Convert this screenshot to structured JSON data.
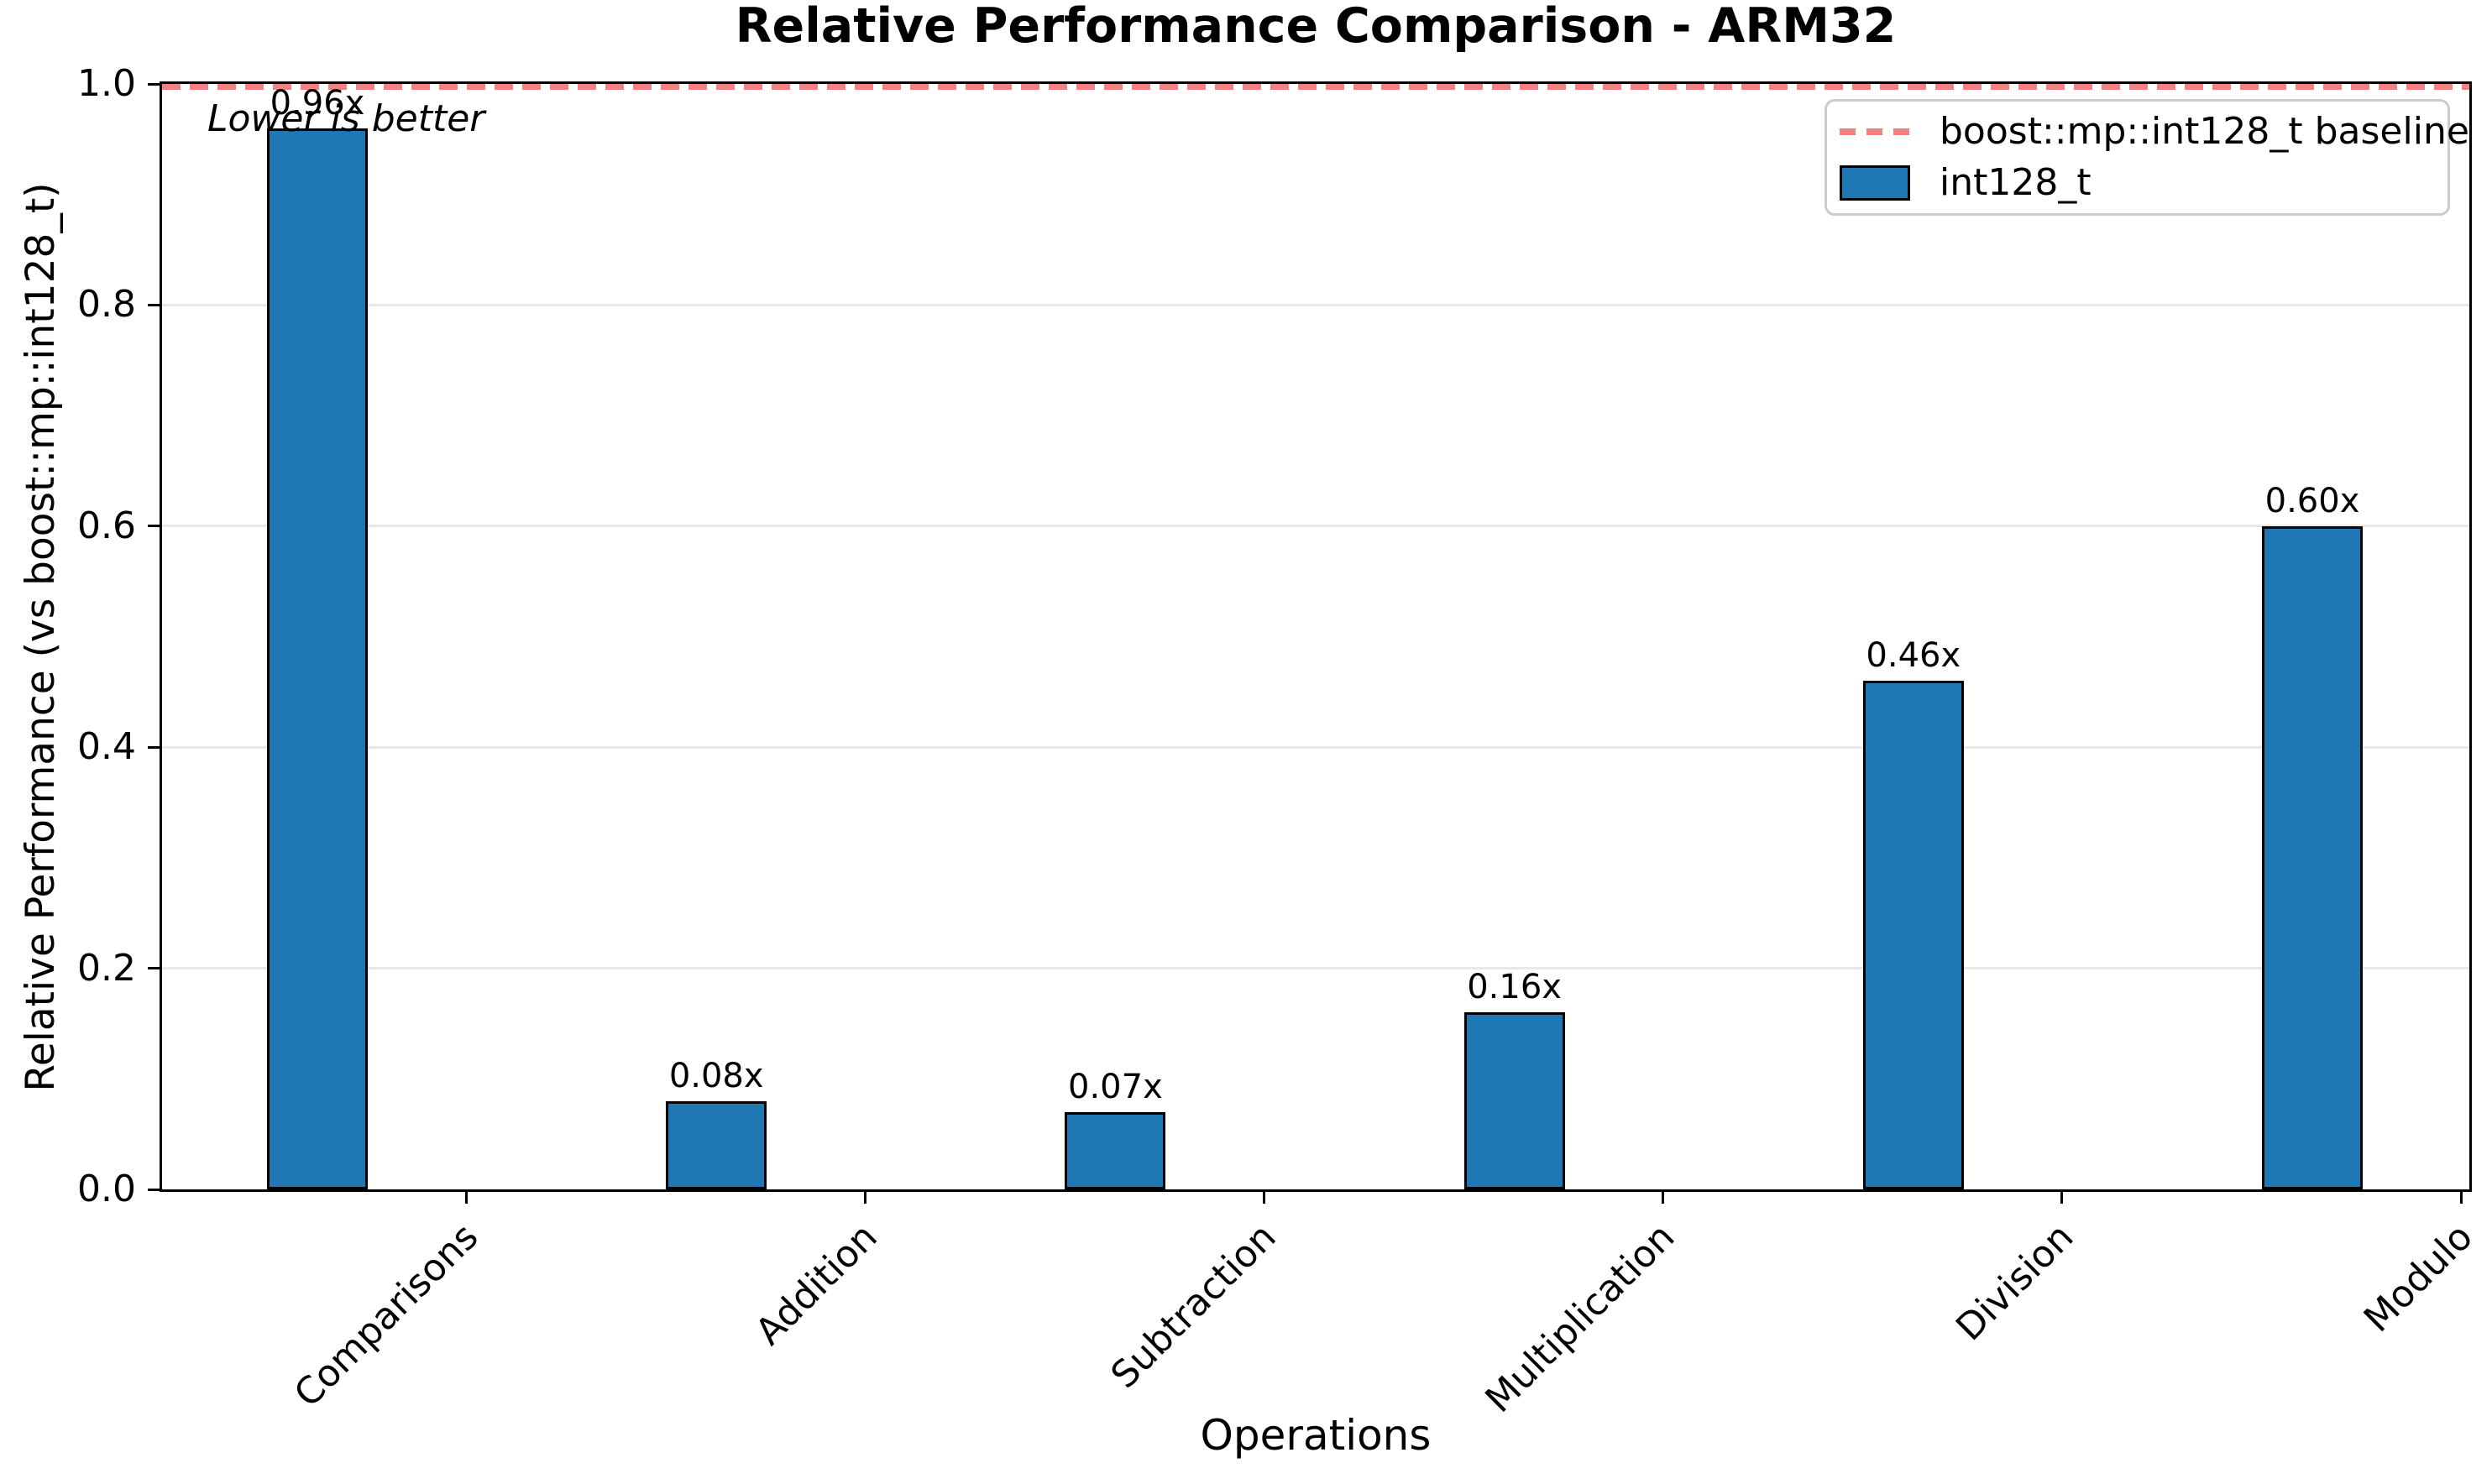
{
  "chart_data": {
    "type": "bar",
    "title": "Relative Performance Comparison - ARM32",
    "xlabel": "Operations",
    "ylabel": "Relative Performance (vs boost::mp::int128_t)",
    "annotation": "Lower is better",
    "categories": [
      "Comparisons",
      "Addition",
      "Subtraction",
      "Multiplication",
      "Division",
      "Modulo"
    ],
    "series": [
      {
        "name": "int128_t",
        "values": [
          0.96,
          0.08,
          0.07,
          0.16,
          0.46,
          0.6
        ],
        "bar_labels": [
          "0.96x",
          "0.08x",
          "0.07x",
          "0.16x",
          "0.46x",
          "0.60x"
        ],
        "color": "#1f77b4"
      }
    ],
    "baseline": {
      "label": "boost::mp::int128_t baseline",
      "value": 1.0,
      "color": "#f28282",
      "style": "dashed"
    },
    "ylim": [
      0.0,
      1.0
    ],
    "yticks": [
      0.0,
      0.2,
      0.4,
      0.6,
      0.8,
      1.0
    ],
    "grid": "horizontal",
    "legend_position": "upper right"
  },
  "legend": {
    "items": [
      {
        "label": "boost::mp::int128_t baseline",
        "swatch": "dashed-line"
      },
      {
        "label": "int128_t",
        "swatch": "filled-bar"
      }
    ]
  }
}
